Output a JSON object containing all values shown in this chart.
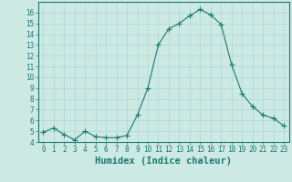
{
  "x": [
    0,
    1,
    2,
    3,
    4,
    5,
    6,
    7,
    8,
    9,
    10,
    11,
    12,
    13,
    14,
    15,
    16,
    17,
    18,
    19,
    20,
    21,
    22,
    23
  ],
  "y": [
    4.9,
    5.3,
    4.7,
    4.2,
    5.0,
    4.5,
    4.4,
    4.4,
    4.6,
    6.5,
    9.0,
    13.0,
    14.5,
    15.0,
    15.7,
    16.3,
    15.8,
    14.9,
    11.2,
    8.5,
    7.3,
    6.5,
    6.2,
    5.5
  ],
  "line_color": "#1a7a6e",
  "marker": "D",
  "marker_size": 2.0,
  "bg_color": "#cce9e4",
  "grid_color": "#b0d8d0",
  "xlabel": "Humidex (Indice chaleur)",
  "ylim": [
    4,
    17
  ],
  "xlim": [
    -0.5,
    23.5
  ],
  "yticks": [
    4,
    5,
    6,
    7,
    8,
    9,
    10,
    11,
    12,
    13,
    14,
    15,
    16
  ],
  "xticks": [
    0,
    1,
    2,
    3,
    4,
    5,
    6,
    7,
    8,
    9,
    10,
    11,
    12,
    13,
    14,
    15,
    16,
    17,
    18,
    19,
    20,
    21,
    22,
    23
  ],
  "tick_color": "#1a7a6e",
  "tick_fontsize": 5.5,
  "xlabel_fontsize": 7.5,
  "linewidth": 0.8
}
